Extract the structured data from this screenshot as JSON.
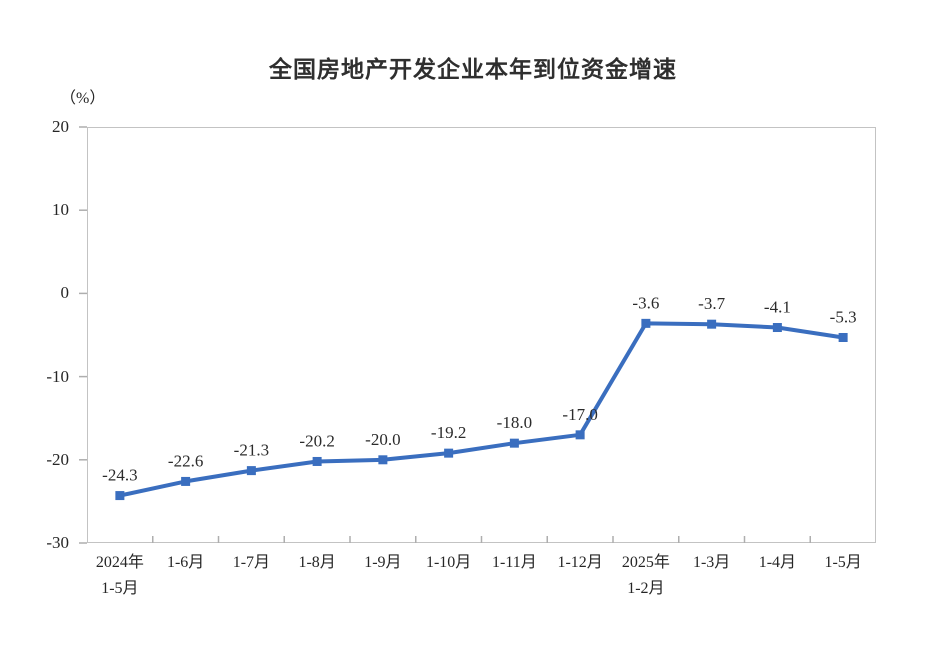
{
  "chart_data": {
    "type": "line",
    "title": "全国房地产开发企业本年到位资金增速",
    "unit_label": "（%）",
    "categories": [
      "2024年\n1-5月",
      "1-6月",
      "1-7月",
      "1-8月",
      "1-9月",
      "1-10月",
      "1-11月",
      "1-12月",
      "2025年\n1-2月",
      "1-3月",
      "1-4月",
      "1-5月"
    ],
    "series": [
      {
        "values": [
          -24.3,
          -22.6,
          -21.3,
          -20.2,
          -20.0,
          -19.2,
          -18.0,
          -17.0,
          -3.6,
          -3.7,
          -4.1,
          -5.3
        ]
      }
    ],
    "data_labels": [
      "-24.3",
      "-22.6",
      "-21.3",
      "-20.2",
      "-20.0",
      "-19.2",
      "-18.0",
      "-17.0",
      "-3.6",
      "-3.7",
      "-4.1",
      "-5.3"
    ],
    "y_ticks": [
      20,
      10,
      0,
      -10,
      -20,
      -30
    ],
    "ylim": [
      -30,
      20
    ],
    "grid": false,
    "legend": "none",
    "line_color": "#3a6ebf",
    "axis_color": "#c3c3c3",
    "tick_color": "#aeaeae",
    "text_color": "#262626",
    "label_color": "#2b2b2b"
  }
}
